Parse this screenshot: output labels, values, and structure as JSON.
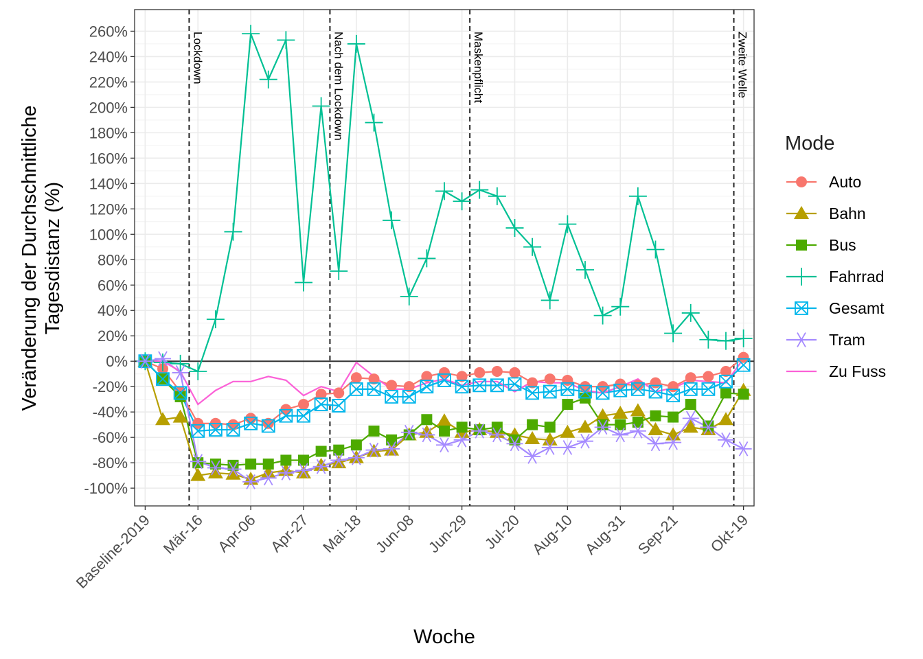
{
  "chart_data": {
    "type": "line",
    "xlabel": "Woche",
    "ylabel": [
      "Veränderung der Durchschnittliche",
      "Tagesdistanz (%)"
    ],
    "legend_title": "Mode",
    "legend": "right",
    "grid": true,
    "categories": [
      "Baseline-2019",
      null,
      null,
      "Mär-16",
      null,
      null,
      "Apr-06",
      null,
      null,
      "Apr-27",
      null,
      null,
      "Mai-18",
      null,
      null,
      "Jun-08",
      null,
      null,
      "Jun-29",
      null,
      null,
      "Jul-20",
      null,
      null,
      "Aug-10",
      null,
      null,
      "Aug-31",
      null,
      null,
      "Sep-21",
      null,
      null,
      null,
      "Okt-19"
    ],
    "ylim": [
      -114,
      277
    ],
    "yticks": [
      {
        "value": -100,
        "label": "-100%"
      },
      {
        "value": -80,
        "label": "-80%"
      },
      {
        "value": -60,
        "label": "-60%"
      },
      {
        "value": -40,
        "label": "-40%"
      },
      {
        "value": -20,
        "label": "-20%"
      },
      {
        "value": 0,
        "label": "0%"
      },
      {
        "value": 20,
        "label": "20%"
      },
      {
        "value": 40,
        "label": "40%"
      },
      {
        "value": 60,
        "label": "60%"
      },
      {
        "value": 80,
        "label": "80%"
      },
      {
        "value": 100,
        "label": "100%"
      },
      {
        "value": 120,
        "label": "120%"
      },
      {
        "value": 140,
        "label": "140%"
      },
      {
        "value": 160,
        "label": "160%"
      },
      {
        "value": 180,
        "label": "180%"
      },
      {
        "value": 200,
        "label": "200%"
      },
      {
        "value": 220,
        "label": "220%"
      },
      {
        "value": 240,
        "label": "240%"
      },
      {
        "value": 260,
        "label": "260%"
      }
    ],
    "hline": 0,
    "annotations": [
      {
        "text": "Lockdown",
        "x": 2.5
      },
      {
        "text": "Nach dem Lockdown",
        "x": 10.5
      },
      {
        "text": "Maskenpflicht",
        "x": 18.45
      },
      {
        "text": "Zweite Welle",
        "x": 33.45
      }
    ],
    "series": [
      {
        "name": "Auto",
        "color": "#F8766D",
        "marker": "circle",
        "values": [
          0,
          -6,
          -24,
          -49,
          -49,
          -50,
          -45,
          -49,
          -38,
          -34,
          -26,
          -25,
          -13,
          -14,
          -19,
          -20,
          -12,
          -9,
          -12,
          -9,
          -8,
          -9,
          -17,
          -14,
          -15,
          -20,
          -20,
          -18,
          -19,
          -17,
          -20,
          -13,
          -12,
          -8,
          3
        ]
      },
      {
        "name": "Bahn",
        "color": "#B79F00",
        "marker": "triangle",
        "values": [
          0,
          -46,
          -44,
          -90,
          -88,
          -89,
          -93,
          -88,
          -86,
          -88,
          -82,
          -80,
          -76,
          -71,
          -70,
          -58,
          -56,
          -47,
          -56,
          -54,
          -56,
          -58,
          -61,
          -62,
          -56,
          -52,
          -43,
          -41,
          -39,
          -54,
          -58,
          -52,
          -54,
          -46,
          -23
        ]
      },
      {
        "name": "Bus",
        "color": "#4DAA00",
        "marker": "square",
        "values": [
          0,
          -14,
          -28,
          -80,
          -81,
          -82,
          -81,
          -81,
          -78,
          -78,
          -71,
          -70,
          -66,
          -55,
          -62,
          -58,
          -46,
          -55,
          -52,
          -54,
          -52,
          -62,
          -50,
          -52,
          -34,
          -29,
          -50,
          -50,
          -48,
          -43,
          -44,
          -34,
          -51,
          -25,
          -26
        ]
      },
      {
        "name": "Fahrrad",
        "color": "#00C094",
        "marker": "plus",
        "values": [
          0,
          -1,
          -2,
          -8,
          33,
          102,
          258,
          222,
          253,
          62,
          201,
          71,
          250,
          188,
          111,
          51,
          81,
          134,
          126,
          135,
          130,
          105,
          90,
          48,
          108,
          72,
          36,
          43,
          130,
          88,
          22,
          38,
          17,
          16,
          18
        ]
      },
      {
        "name": "Gesamt",
        "color": "#00B6EB",
        "marker": "square-x",
        "values": [
          0,
          -14,
          -25,
          -55,
          -54,
          -54,
          -49,
          -51,
          -43,
          -43,
          -34,
          -35,
          -22,
          -22,
          -28,
          -28,
          -20,
          -15,
          -20,
          -19,
          -19,
          -18,
          -25,
          -24,
          -22,
          -24,
          -25,
          -23,
          -22,
          -24,
          -27,
          -22,
          -22,
          -16,
          -3
        ]
      },
      {
        "name": "Tram",
        "color": "#A58AFF",
        "marker": "asterisk",
        "values": [
          0,
          2,
          -9,
          -79,
          -84,
          -85,
          -95,
          -92,
          -88,
          -86,
          -83,
          -78,
          -76,
          -70,
          -69,
          -56,
          -58,
          -66,
          -62,
          -55,
          -58,
          -65,
          -75,
          -68,
          -68,
          -63,
          -52,
          -58,
          -55,
          -65,
          -64,
          -45,
          -52,
          -62,
          -69
        ]
      },
      {
        "name": "Zu Fuss",
        "color": "#FB61D7",
        "marker": "none",
        "values": [
          0,
          0,
          -8,
          -34,
          -23,
          -16,
          -16,
          -12,
          -15,
          -27,
          -20,
          -24,
          -1,
          -12,
          -22,
          -22,
          -17,
          -14,
          -19,
          -16,
          -16,
          -24,
          -16,
          -17,
          -17,
          -23,
          -25,
          -20,
          -14,
          -24,
          -21,
          -15,
          -16,
          -17,
          2
        ]
      }
    ]
  }
}
